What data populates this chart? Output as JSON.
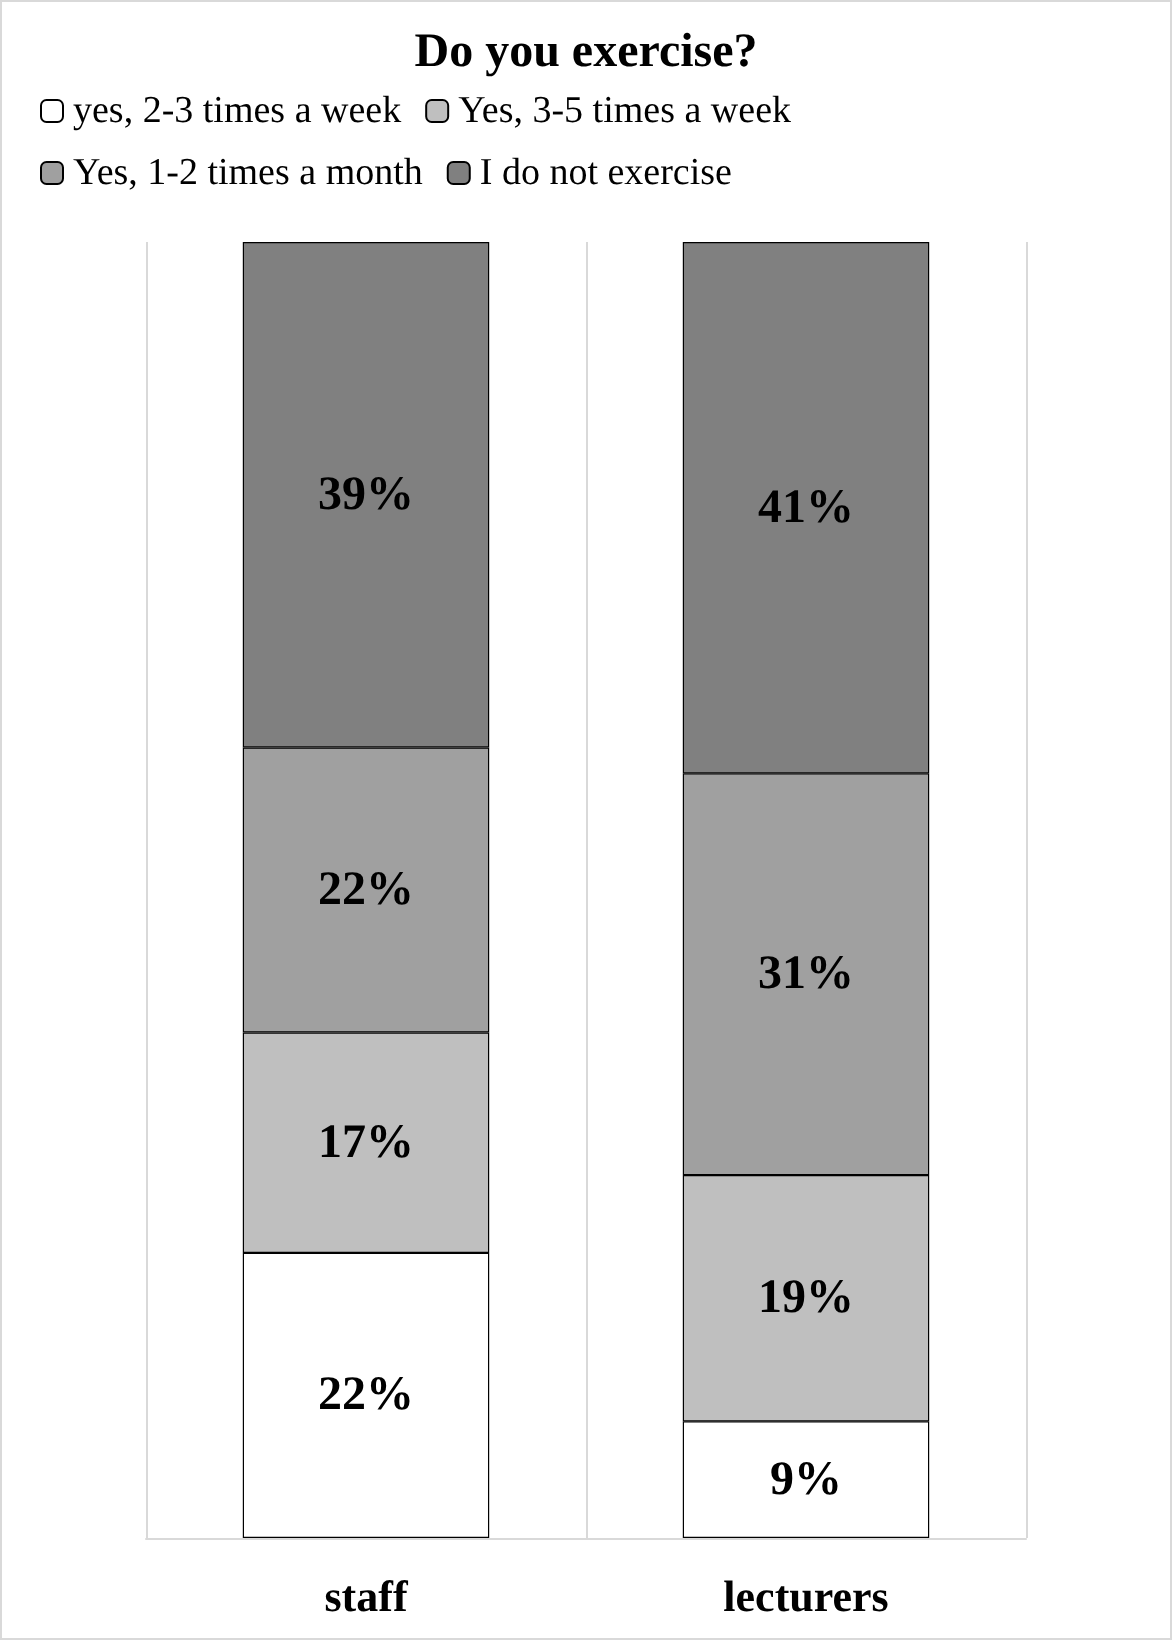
{
  "chart_data": {
    "type": "bar",
    "title": "Do you exercise?",
    "stacked": true,
    "legend": "top",
    "grid": "x",
    "categories": [
      "staff",
      "lecturers"
    ],
    "series": [
      {
        "name": "yes, 2-3 times a week",
        "color": "#ffffff",
        "values": [
          22,
          9
        ],
        "value_labels": [
          "22%",
          "9%"
        ]
      },
      {
        "name": "Yes, 3-5 times a week",
        "color": "#bfbfbf",
        "values": [
          17,
          19
        ],
        "value_labels": [
          "17%",
          "19%"
        ]
      },
      {
        "name": "Yes, 1-2 times a month",
        "color": "#a0a0a0",
        "values": [
          22,
          31
        ],
        "value_labels": [
          "22%",
          "31%"
        ]
      },
      {
        "name": "I do not exercise",
        "color": "#808080",
        "values": [
          39,
          41
        ],
        "value_labels": [
          "39%",
          "41%"
        ]
      }
    ]
  }
}
